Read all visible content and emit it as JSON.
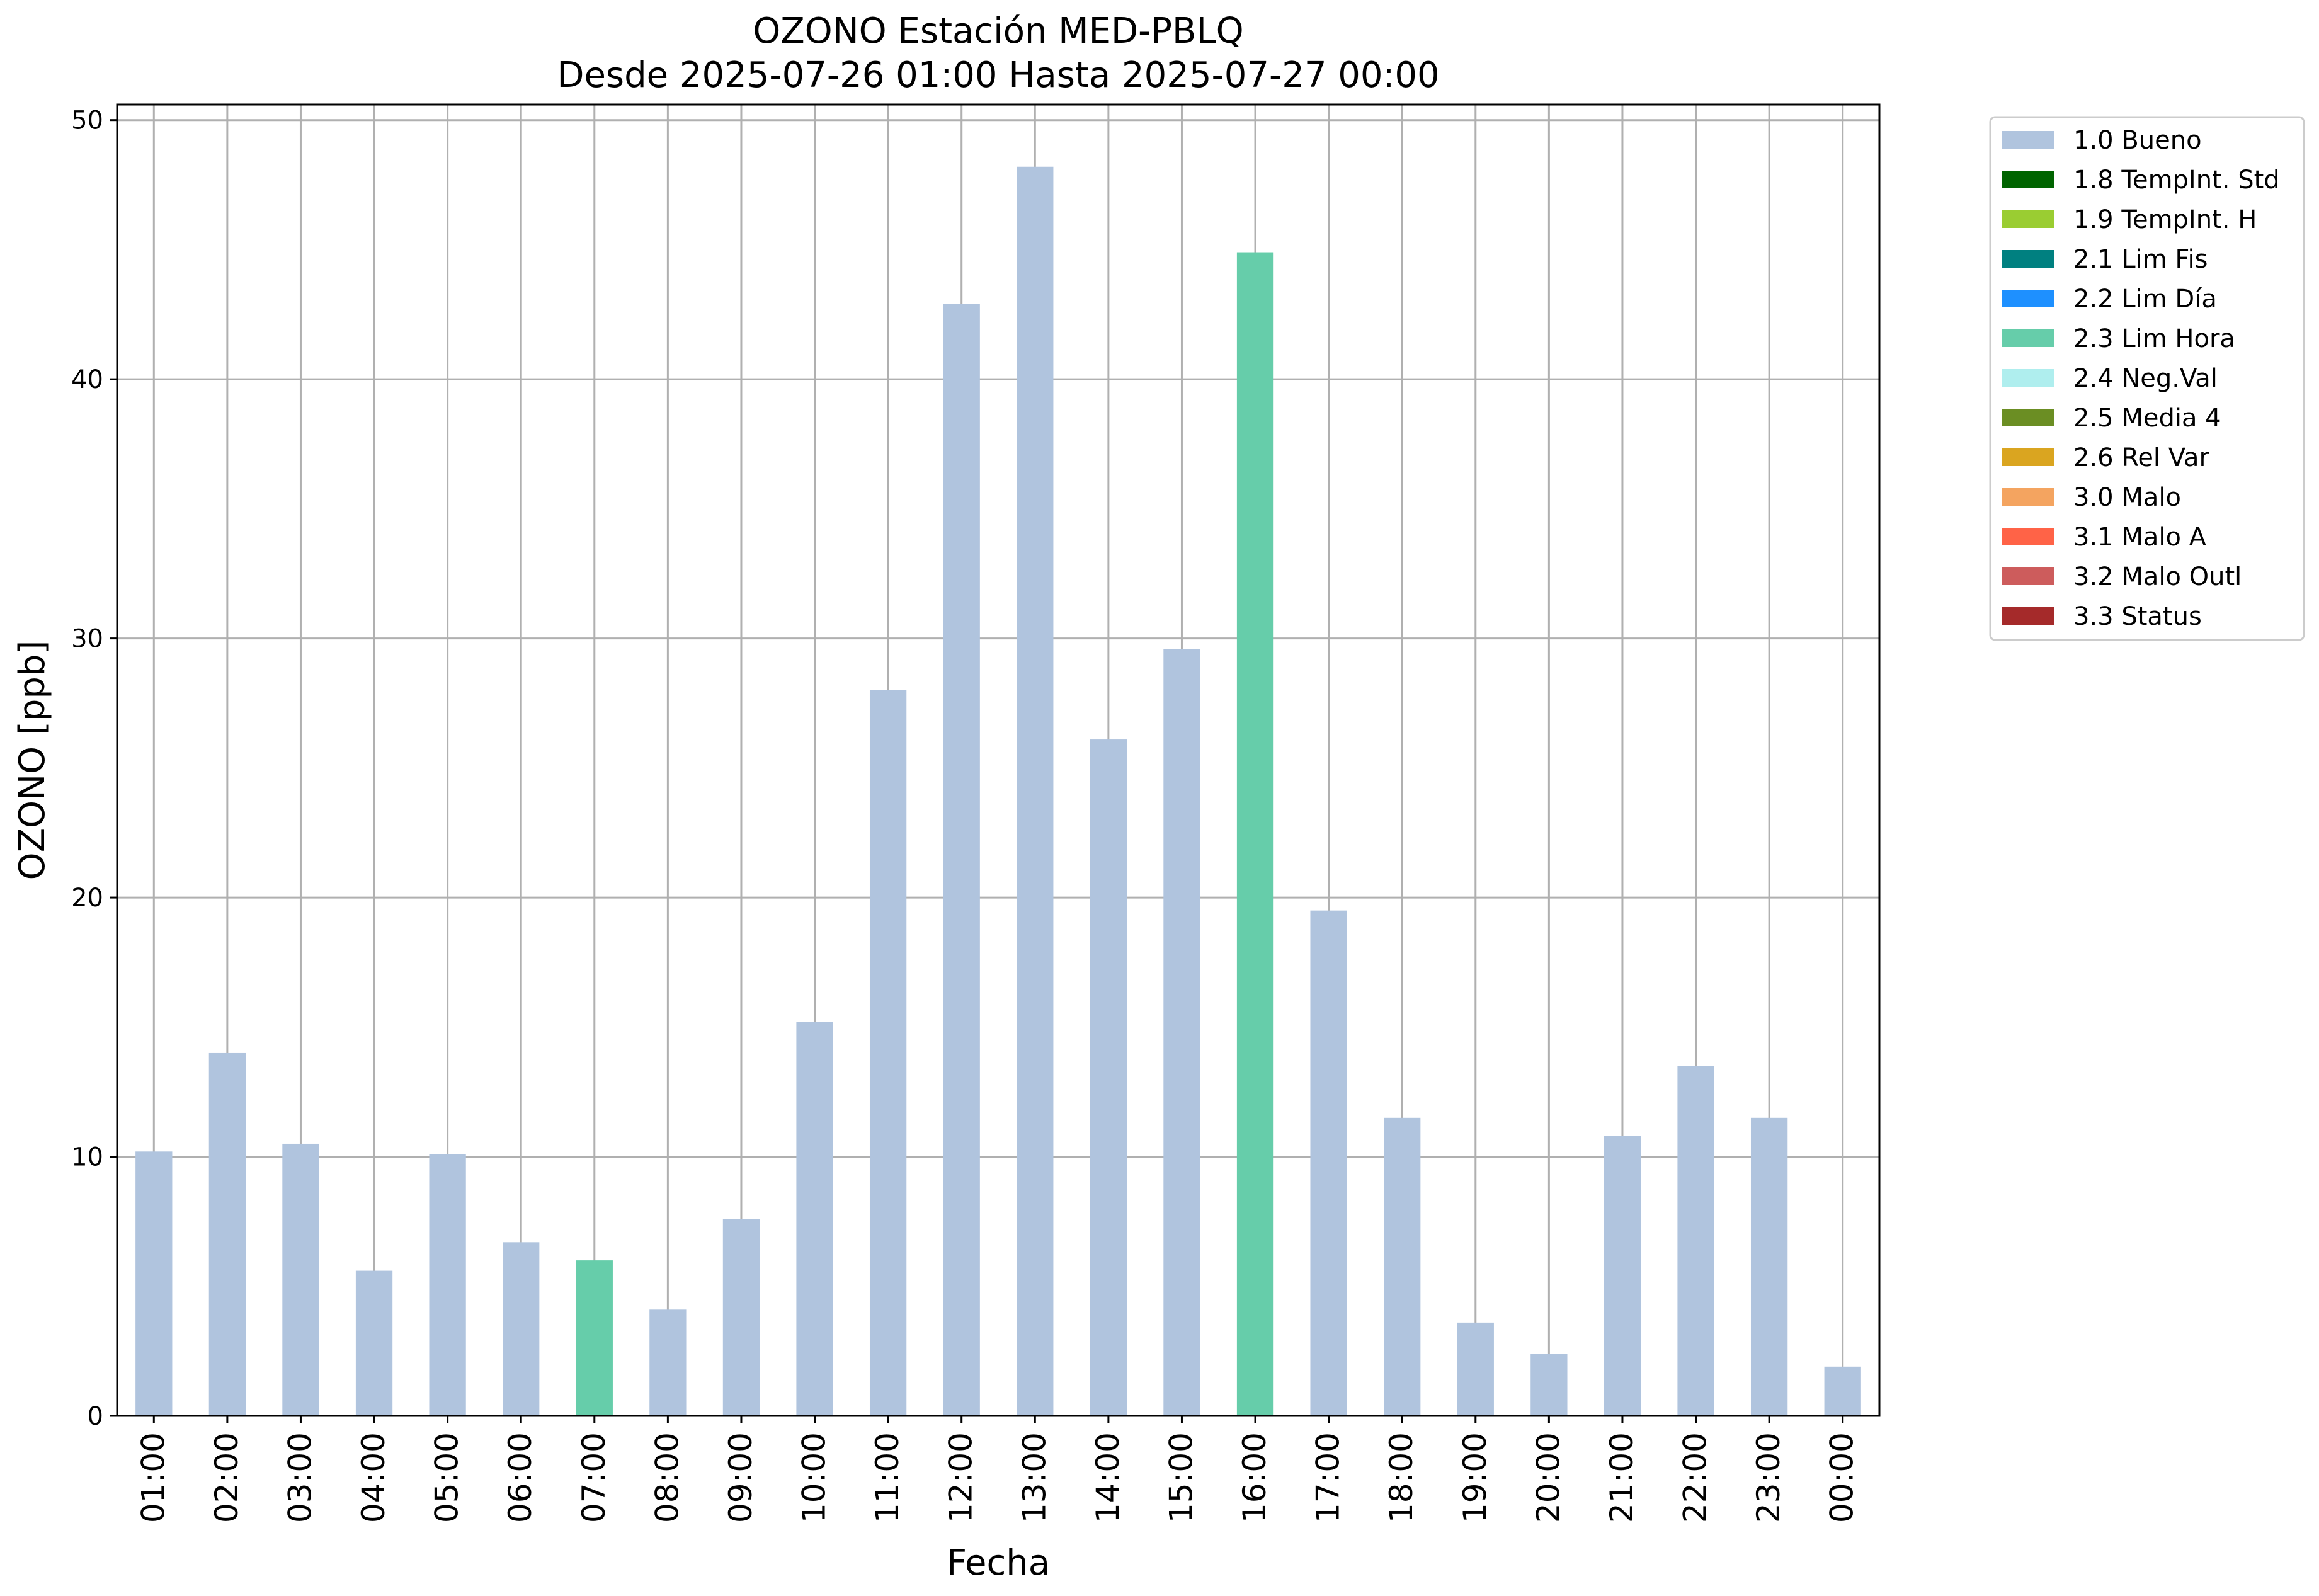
{
  "chart_data": {
    "type": "bar",
    "title": "OZONO Estación MED-PBLQ",
    "subtitle": "Desde 2025-07-26 01:00 Hasta 2025-07-27 00:00",
    "xlabel": "Fecha",
    "ylabel": "OZONO [ppb]",
    "ylim": [
      0,
      50.6
    ],
    "yticks": [
      0,
      10,
      20,
      30,
      40,
      50
    ],
    "grid": true,
    "legend_position": "outside-top-right",
    "categories": [
      "01:00",
      "02:00",
      "03:00",
      "04:00",
      "05:00",
      "06:00",
      "07:00",
      "08:00",
      "09:00",
      "10:00",
      "11:00",
      "12:00",
      "13:00",
      "14:00",
      "15:00",
      "16:00",
      "17:00",
      "18:00",
      "19:00",
      "20:00",
      "21:00",
      "22:00",
      "23:00",
      "00:00"
    ],
    "values": [
      10.2,
      14.0,
      10.5,
      5.6,
      10.1,
      6.7,
      6.0,
      4.1,
      7.6,
      15.2,
      28.0,
      42.9,
      48.2,
      26.1,
      29.6,
      44.9,
      19.5,
      11.5,
      3.6,
      2.4,
      10.8,
      13.5,
      11.5,
      1.9
    ],
    "flags": [
      "1.0 Bueno",
      "1.0 Bueno",
      "1.0 Bueno",
      "1.0 Bueno",
      "1.0 Bueno",
      "1.0 Bueno",
      "2.3 Lim Hora",
      "1.0 Bueno",
      "1.0 Bueno",
      "1.0 Bueno",
      "1.0 Bueno",
      "1.0 Bueno",
      "1.0 Bueno",
      "1.0 Bueno",
      "1.0 Bueno",
      "2.3 Lim Hora",
      "1.0 Bueno",
      "1.0 Bueno",
      "1.0 Bueno",
      "1.0 Bueno",
      "1.0 Bueno",
      "1.0 Bueno",
      "1.0 Bueno",
      "1.0 Bueno"
    ],
    "legend": [
      {
        "label": "1.0 Bueno",
        "color": "#b0c4de"
      },
      {
        "label": "1.8 TempInt. Std",
        "color": "#006400"
      },
      {
        "label": "1.9 TempInt. H",
        "color": "#9acd32"
      },
      {
        "label": "2.1 Lim Fis",
        "color": "#008080"
      },
      {
        "label": "2.2 Lim Día",
        "color": "#1e90ff"
      },
      {
        "label": "2.3 Lim Hora",
        "color": "#66cdaa"
      },
      {
        "label": "2.4 Neg.Val",
        "color": "#afeeee"
      },
      {
        "label": "2.5 Media 4",
        "color": "#6b8e23"
      },
      {
        "label": "2.6 Rel Var",
        "color": "#daa520"
      },
      {
        "label": "3.0 Malo",
        "color": "#f4a460"
      },
      {
        "label": "3.1 Malo A",
        "color": "#ff6347"
      },
      {
        "label": "3.2 Malo Outl",
        "color": "#cd5c5c"
      },
      {
        "label": "3.3 Status",
        "color": "#a52a2a"
      }
    ]
  }
}
